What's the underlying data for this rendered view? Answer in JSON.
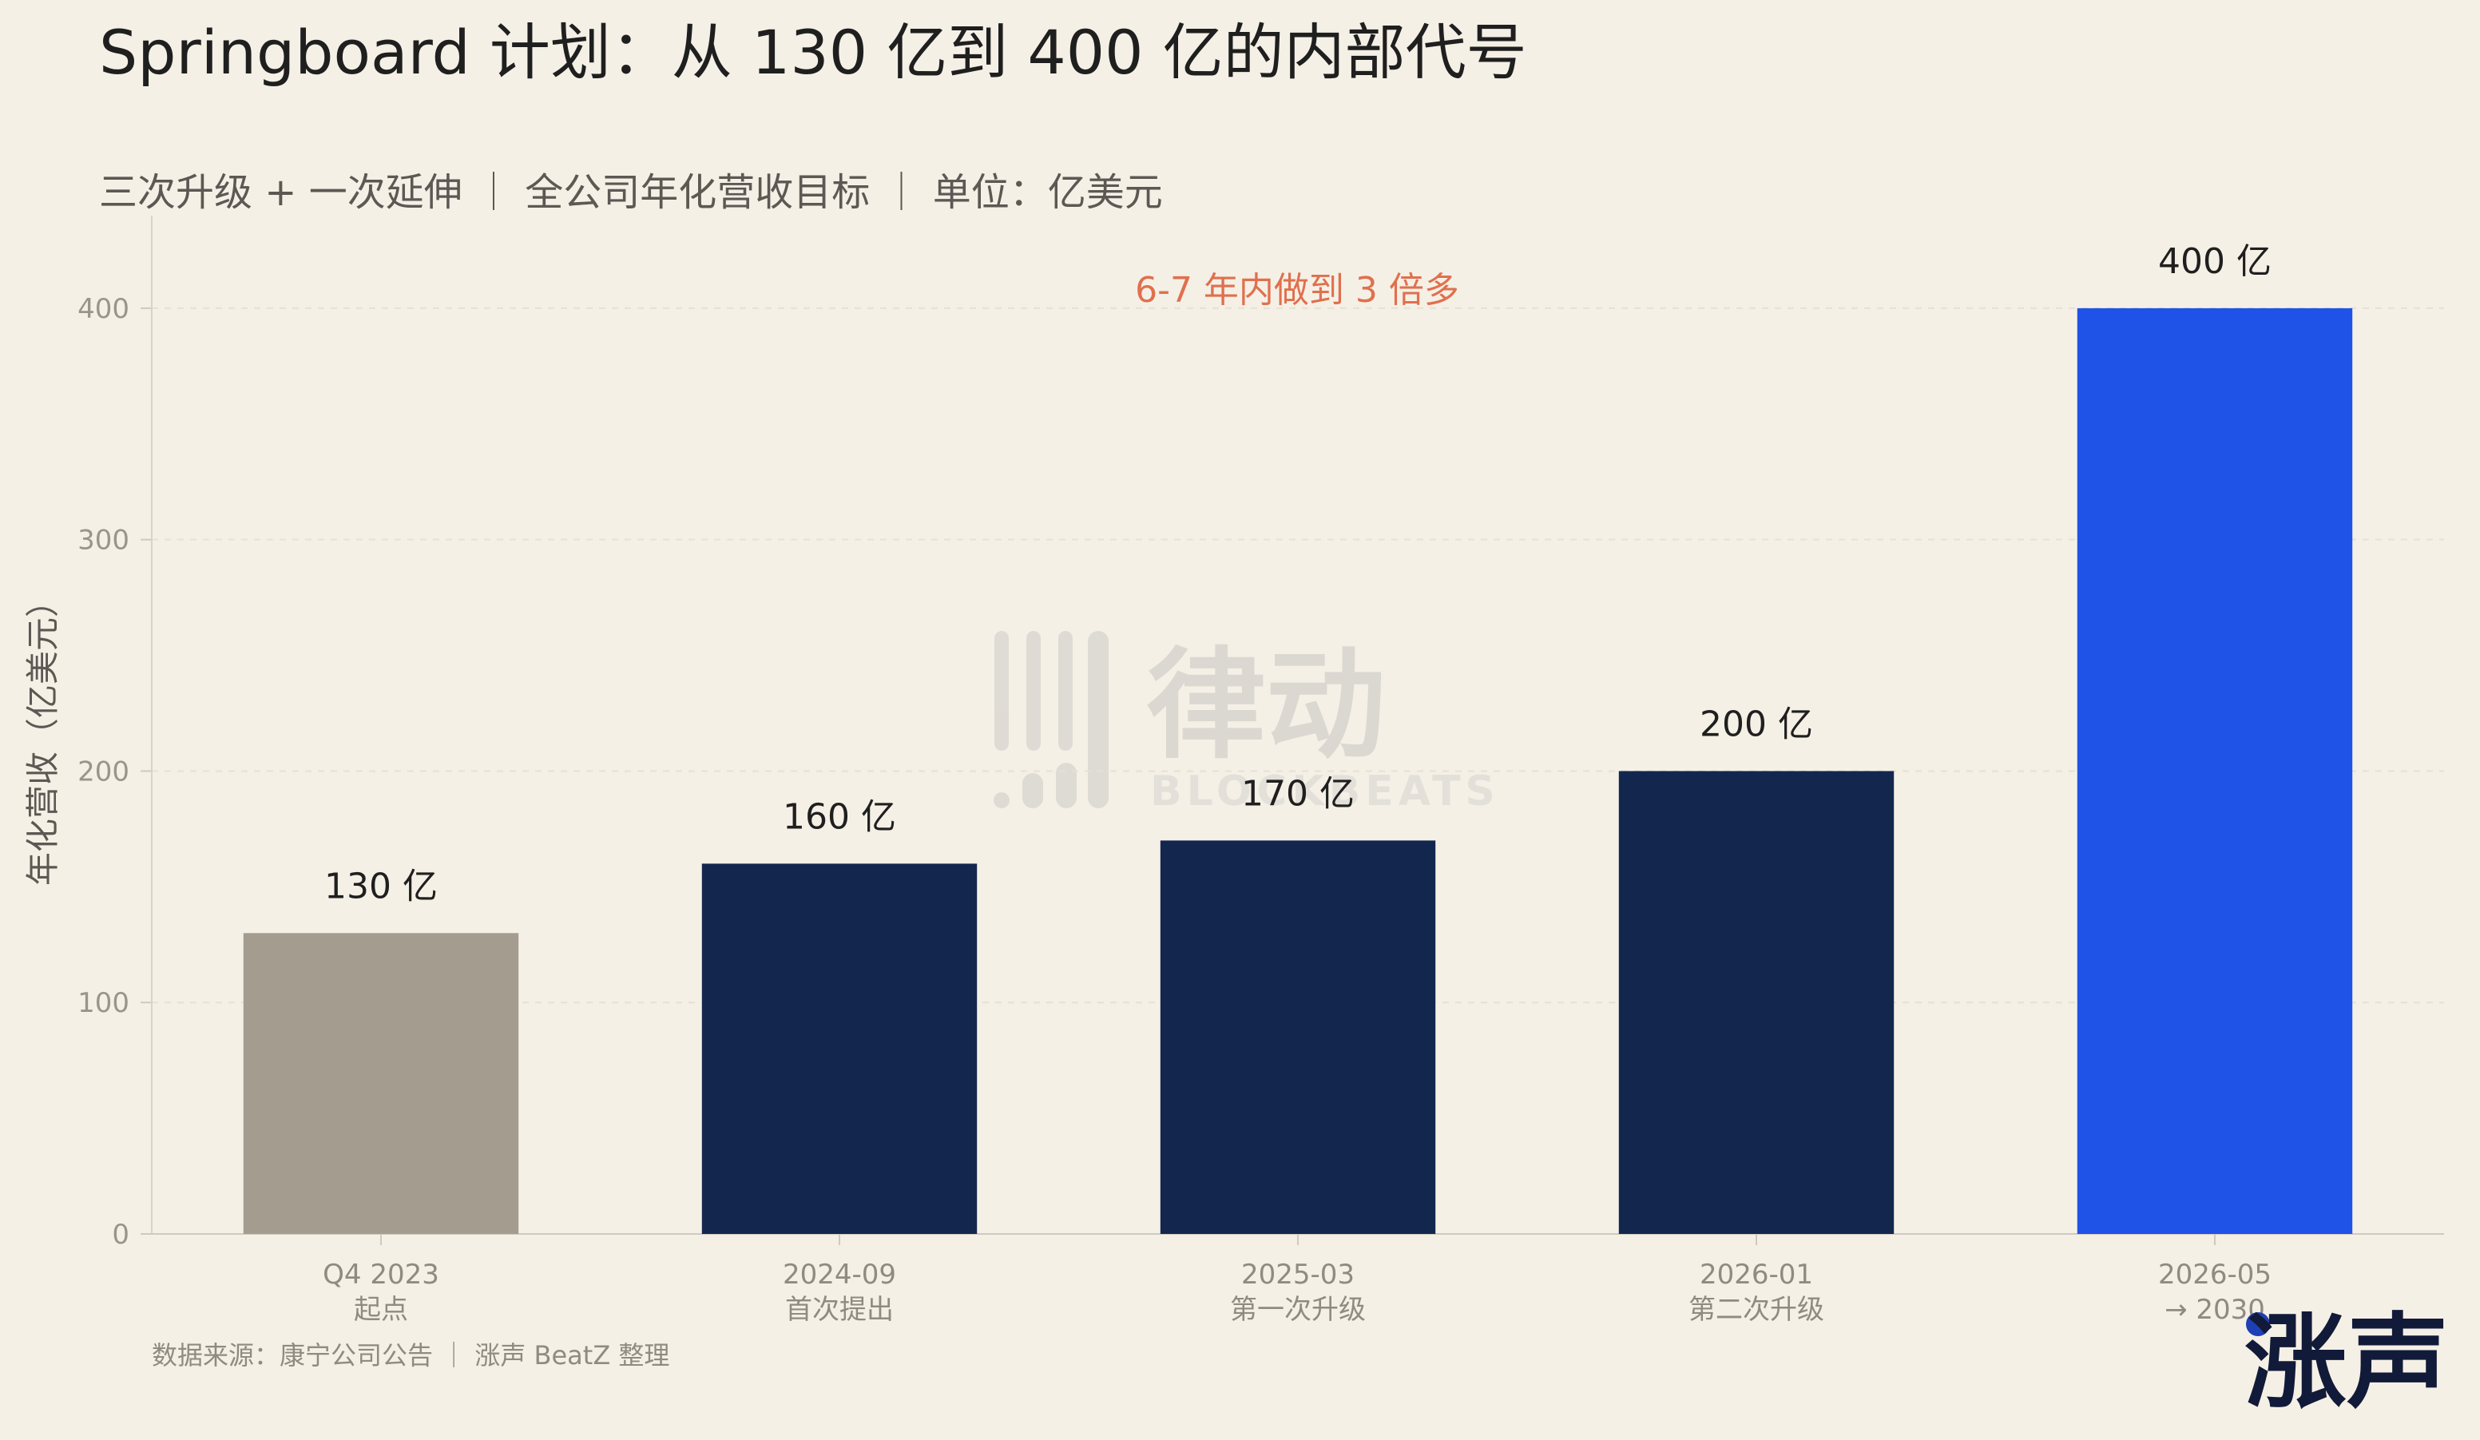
{
  "chart_data": {
    "type": "bar",
    "title": "Springboard 计划：从 130 亿到 400 亿的内部代号",
    "subtitle": "三次升级 + 一次延伸 ｜ 全公司年化营收目标 ｜ 单位：亿美元",
    "ylabel": "年化营收（亿美元）",
    "ylim": [
      0,
      440
    ],
    "yticks": [
      0,
      100,
      200,
      300,
      400
    ],
    "grid": true,
    "categories": [
      {
        "line1": "Q4 2023",
        "line2": "起点"
      },
      {
        "line1": "2024-09",
        "line2": "首次提出"
      },
      {
        "line1": "2025-03",
        "line2": "第一次升级"
      },
      {
        "line1": "2026-01",
        "line2": "第二次升级"
      },
      {
        "line1": "2026-05",
        "line2": "→ 2030"
      }
    ],
    "values": [
      130,
      160,
      170,
      200,
      400
    ],
    "value_labels": [
      "130 亿",
      "160 亿",
      "170 亿",
      "200 亿",
      "400 亿"
    ],
    "colors": [
      "#a39c8f",
      "#13274e",
      "#13274e",
      "#13274e",
      "#1f52e6"
    ],
    "annotation": "6-7 年内做到 3 倍多",
    "source": "数据来源：康宁公司公告 ｜ 涨声 BeatZ 整理"
  },
  "watermark": {
    "text": "律动",
    "subtext": "BLOCKBEATS"
  },
  "brand": {
    "name": "涨声",
    "dot_color": "#1f3fb5"
  }
}
